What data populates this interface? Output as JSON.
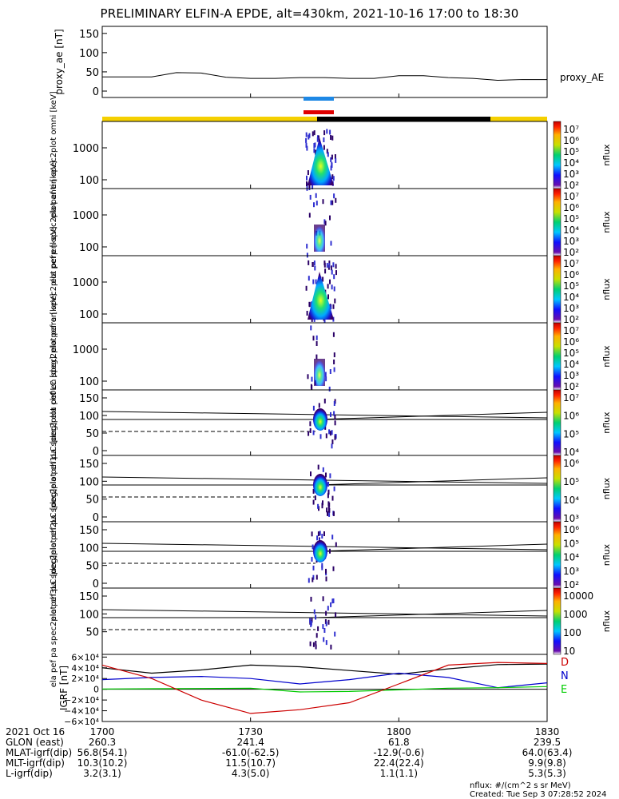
{
  "title": "PRELIMINARY ELFIN-A EPDE, alt=430km, 2021-10-16 17:00 to 18:30",
  "chart_data": [
    {
      "type": "line",
      "ylabel": "proxy_ae [nT]",
      "legend": "proxy_AE",
      "yticks": [
        "150",
        "100",
        "50",
        "0"
      ],
      "ylim": [
        0,
        160
      ],
      "x_minutes": [
        0,
        10,
        15,
        20,
        25,
        30,
        35,
        40,
        45,
        50,
        55,
        60,
        65,
        70,
        75,
        80,
        85,
        90
      ],
      "values": [
        37,
        37,
        48,
        47,
        36,
        33,
        33,
        35,
        35,
        33,
        33,
        40,
        40,
        35,
        33,
        28,
        30,
        30
      ]
    },
    {
      "type": "heatmap",
      "ylabel": "ela pef en spec2plot omni [keV]",
      "yticks": [
        "1000",
        "100"
      ],
      "colorbar_label": "nflux",
      "colorbar_ticks": [
        "10⁷",
        "10⁶",
        "10⁵",
        "10⁴",
        "10³",
        "10²"
      ]
    },
    {
      "type": "heatmap",
      "ylabel": "ela pef en spec2plot anti [keV]",
      "yticks": [
        "1000",
        "100"
      ],
      "colorbar_label": "nflux",
      "colorbar_ticks": [
        "10⁷",
        "10⁶",
        "10⁵",
        "10⁴",
        "10³",
        "10²"
      ]
    },
    {
      "type": "heatmap",
      "ylabel": "ela pef en spec2plot perp [keV]",
      "yticks": [
        "1000",
        "100"
      ],
      "colorbar_label": "nflux",
      "colorbar_ticks": [
        "10⁷",
        "10⁶",
        "10⁵",
        "10⁴",
        "10³",
        "10²"
      ]
    },
    {
      "type": "heatmap",
      "ylabel": "ela pef en spec2plot para [keV]",
      "yticks": [
        "1000",
        "100"
      ],
      "colorbar_label": "nflux",
      "colorbar_ticks": [
        "10⁷",
        "10⁶",
        "10⁵",
        "10⁴",
        "10³",
        "10²"
      ]
    },
    {
      "type": "heatmap",
      "ylabel": "ela pef pa spec2plot ch0LC [deg]",
      "yticks": [
        "150",
        "100",
        "50",
        "0"
      ],
      "colorbar_label": "nflux",
      "colorbar_ticks": [
        "10⁷",
        "10⁶",
        "10⁵",
        "10⁴"
      ]
    },
    {
      "type": "heatmap",
      "ylabel": "ela pef pa spec2plot ch1LC [deg]",
      "yticks": [
        "150",
        "100",
        "50",
        "0"
      ],
      "colorbar_label": "nflux",
      "colorbar_ticks": [
        "10⁶",
        "10⁵",
        "10⁴",
        "10³"
      ]
    },
    {
      "type": "heatmap",
      "ylabel": "ela pef pa spec2plot ch2LC [deg]",
      "yticks": [
        "150",
        "100",
        "50",
        "0"
      ],
      "colorbar_label": "nflux",
      "colorbar_ticks": [
        "10⁶",
        "10⁵",
        "10⁴",
        "10³",
        "10²"
      ]
    },
    {
      "type": "heatmap",
      "ylabel": "ela pef pa spec2plot ch3LC [deg]",
      "yticks": [
        "150",
        "100",
        "50"
      ],
      "colorbar_label": "nflux",
      "colorbar_ticks": [
        "10000",
        "1000",
        "100",
        "10"
      ]
    },
    {
      "type": "line",
      "ylabel": "IGRF [nT]",
      "yticks": [
        "6×10⁴",
        "4×10⁴",
        "2×10⁴",
        "0",
        "−2×10⁴",
        "−4×10⁴",
        "−6×10⁴"
      ],
      "ylim": [
        -60000,
        65000
      ],
      "legend": [
        "D",
        "N",
        "E"
      ],
      "x_minutes": [
        0,
        10,
        20,
        30,
        40,
        50,
        60,
        70,
        80,
        90
      ],
      "series": [
        {
          "name": "D",
          "color": "#000000",
          "values": [
            40000,
            30000,
            36000,
            45000,
            42000,
            35000,
            28000,
            38000,
            46000,
            47000
          ]
        },
        {
          "name": "N",
          "color": "#0000cc",
          "values": [
            18000,
            22000,
            24000,
            20000,
            10000,
            18000,
            30000,
            22000,
            3000,
            12000
          ]
        },
        {
          "name": "E",
          "color": "#00cc00",
          "values": [
            500,
            1000,
            1500,
            2000,
            -5000,
            -4000,
            -1000,
            2000,
            3000,
            5000
          ]
        },
        {
          "name": "",
          "color": "#cc0000",
          "values": [
            45000,
            20000,
            -20000,
            -45000,
            -38000,
            -25000,
            10000,
            45000,
            50000,
            48000
          ]
        }
      ]
    }
  ],
  "time_axis": {
    "rows": [
      [
        "2021 Oct 16",
        "1700",
        "1730",
        "1800",
        "1830"
      ],
      [
        "GLON (east)",
        "260.3",
        "241.4",
        "61.8",
        "239.5"
      ],
      [
        "MLAT-igrf(dip)",
        "56.8(54.1)",
        "-61.0(-62.5)",
        "-12.9(-0.6)",
        "64.0(63.4)"
      ],
      [
        "MLT-igrf(dip)",
        "10.3(10.2)",
        "11.5(10.7)",
        "22.4(22.4)",
        "9.9(9.8)"
      ],
      [
        "L-igrf(dip)",
        "3.2(3.1)",
        "4.3(5.0)",
        "1.1(1.1)",
        "5.3(5.3)"
      ]
    ]
  },
  "footer": {
    "units": "nflux: #/(cm^2 s sr MeV)",
    "created": "Created: Tue Sep  3 07:28:52 2024"
  }
}
